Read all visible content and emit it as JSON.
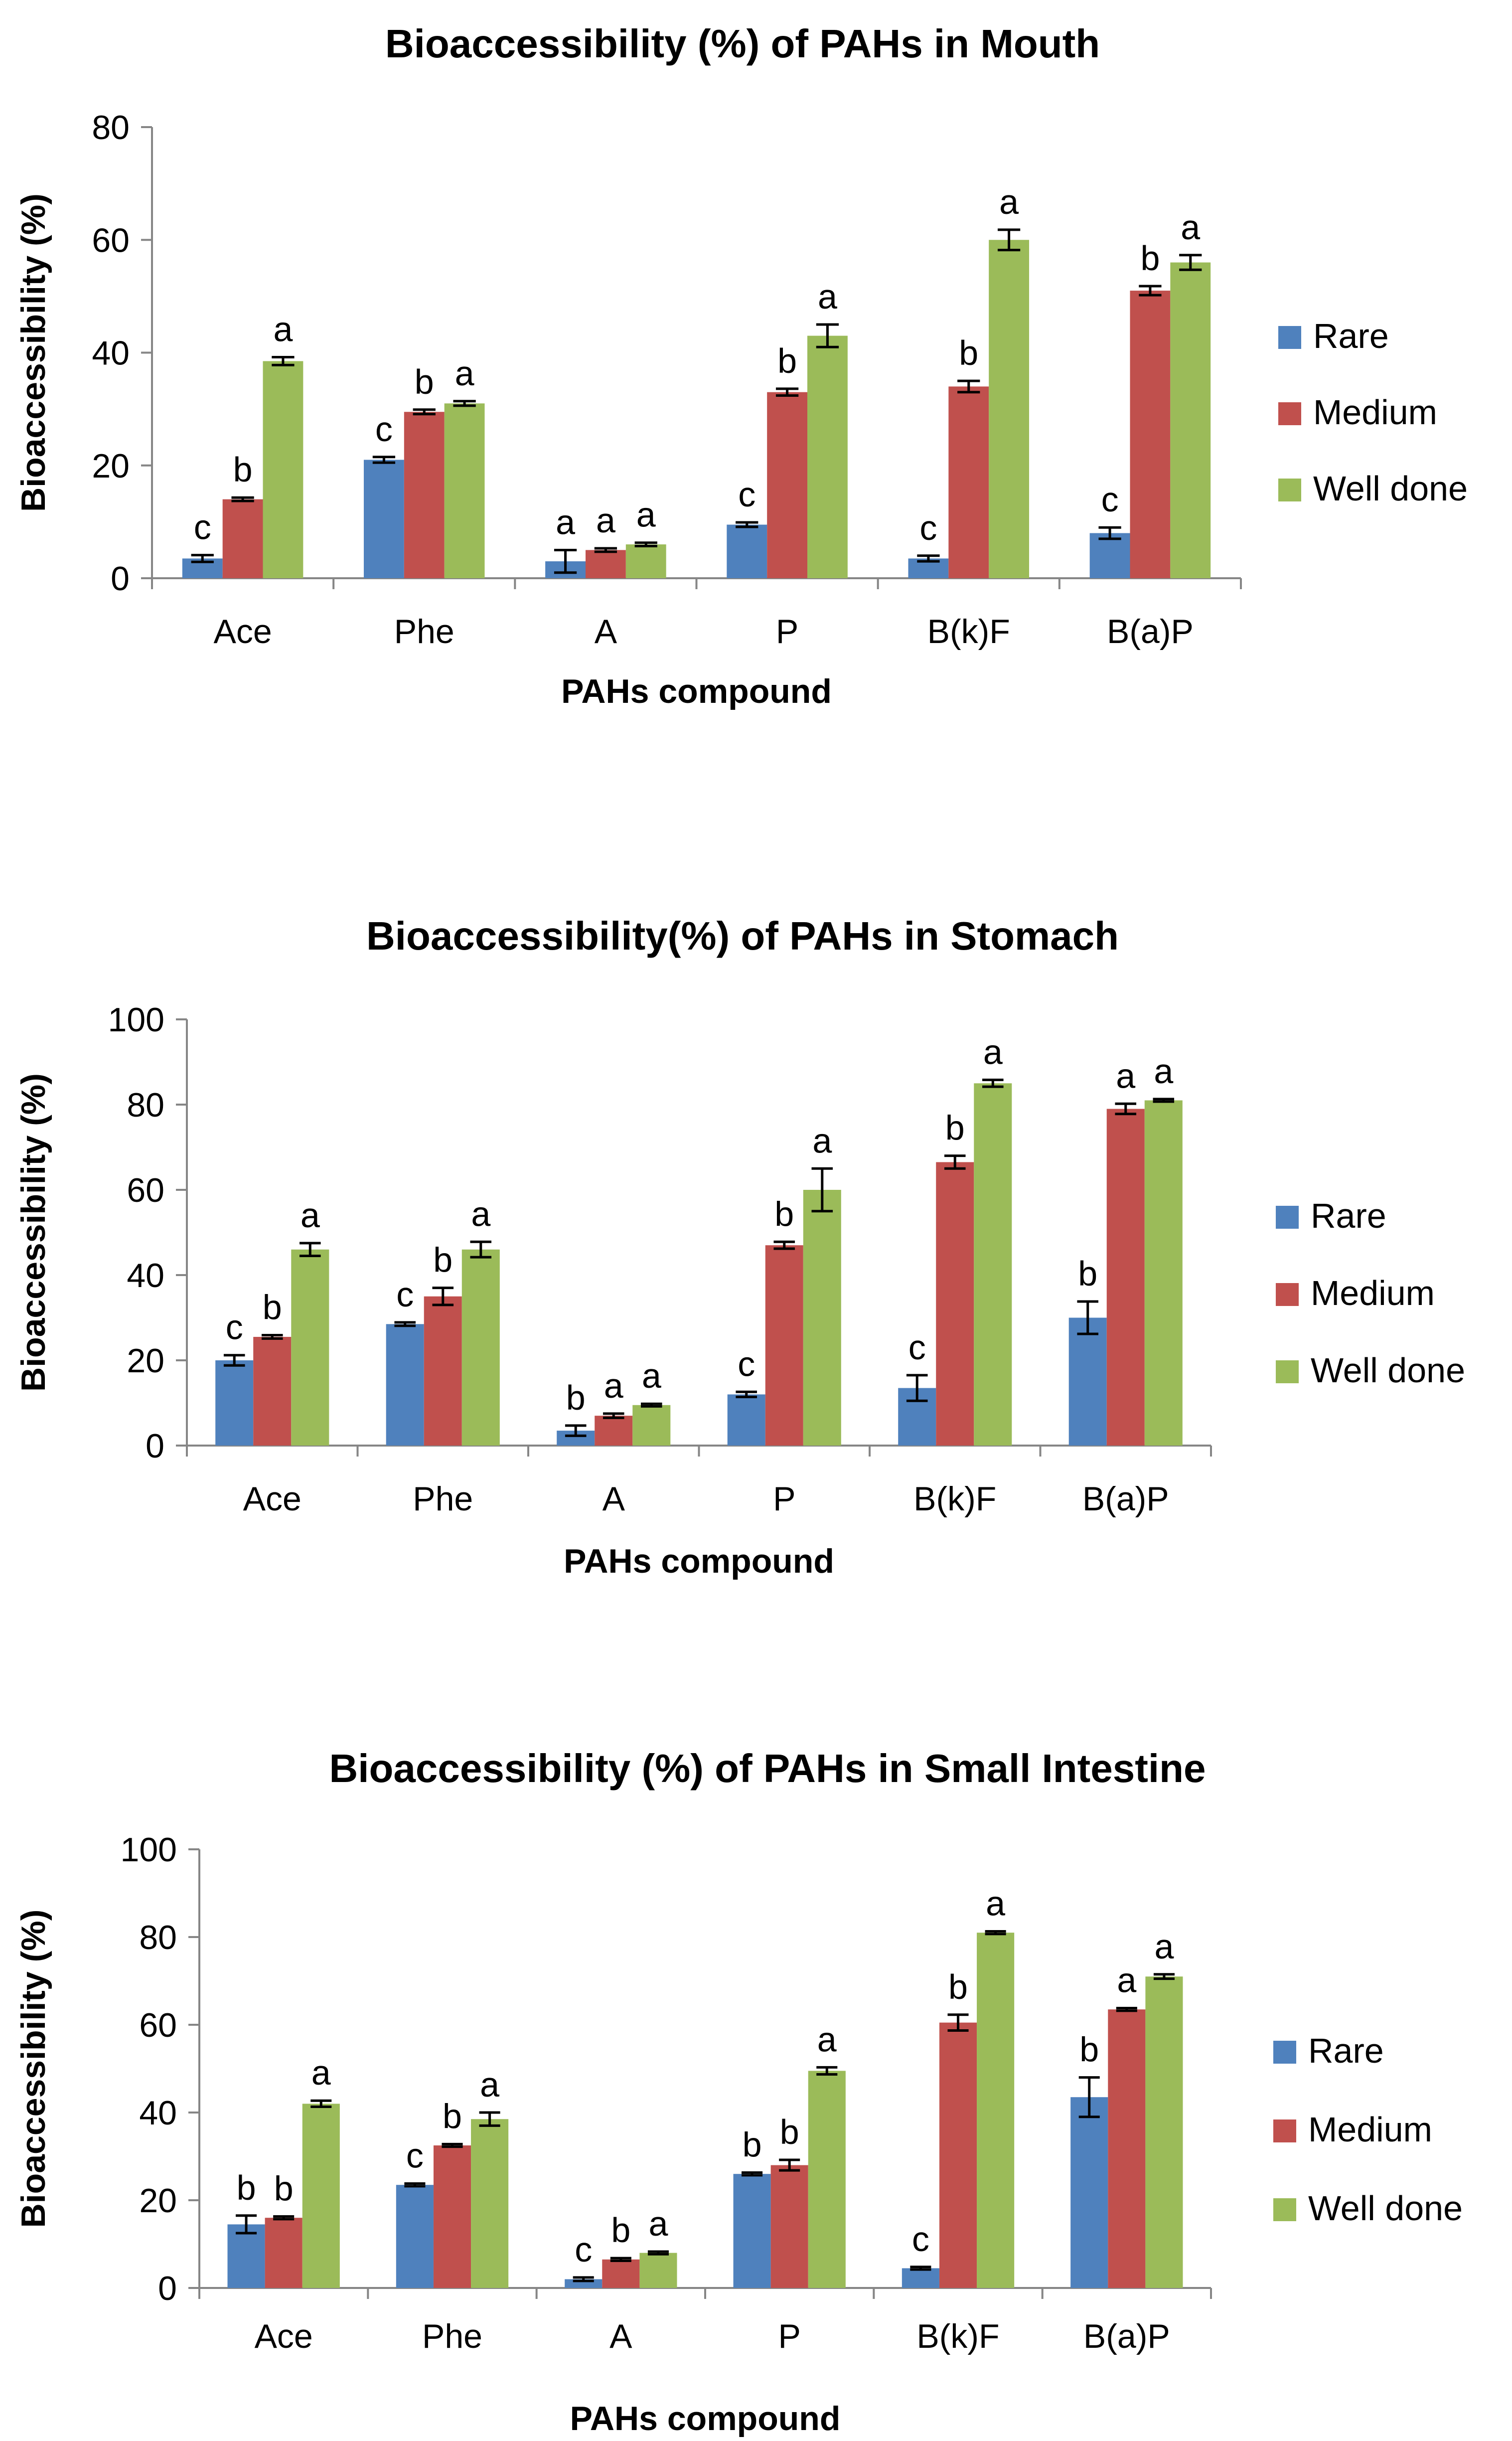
{
  "chart_data": [
    {
      "type": "bar",
      "title": "Bioaccessibility (%) of PAHs in Mouth",
      "xlabel": "PAHs compound",
      "ylabel": "Bioaccessibility (%)",
      "ylim": [
        0,
        80
      ],
      "yticks": [
        0,
        20,
        40,
        60,
        80
      ],
      "categories": [
        "Ace",
        "Phe",
        "A",
        "P",
        "B(k)F",
        "B(a)P"
      ],
      "legend_position": "right",
      "series": [
        {
          "name": "Rare",
          "color": "#4F81BD",
          "values": [
            3.5,
            21,
            3,
            9.5,
            3.5,
            8
          ],
          "errors": [
            0.6,
            0.5,
            2,
            0.4,
            0.5,
            1
          ],
          "labels": [
            "c",
            "c",
            "a",
            "c",
            "c",
            "c"
          ]
        },
        {
          "name": "Medium",
          "color": "#C0504D",
          "values": [
            14,
            29.5,
            5,
            33,
            34,
            51
          ],
          "errors": [
            0.3,
            0.4,
            0.3,
            0.6,
            1,
            0.8
          ],
          "labels": [
            "b",
            "b",
            "a",
            "b",
            "b",
            "b"
          ]
        },
        {
          "name": "Well done",
          "color": "#9BBB59",
          "values": [
            38.5,
            31,
            6,
            43,
            60,
            56
          ],
          "errors": [
            0.7,
            0.4,
            0.3,
            2,
            1.8,
            1.3
          ],
          "labels": [
            "a",
            "a",
            "a",
            "a",
            "a",
            "a"
          ]
        }
      ]
    },
    {
      "type": "bar",
      "title": "Bioaccessibility(%) of PAHs in Stomach",
      "xlabel": "PAHs compound",
      "ylabel": "Bioaccessibility (%)",
      "ylim": [
        0,
        100
      ],
      "yticks": [
        0,
        20,
        40,
        60,
        80,
        100
      ],
      "categories": [
        "Ace",
        "Phe",
        "A",
        "P",
        "B(k)F",
        "B(a)P"
      ],
      "legend_position": "right",
      "series": [
        {
          "name": "Rare",
          "color": "#4F81BD",
          "values": [
            20,
            28.5,
            3.5,
            12,
            13.5,
            30
          ],
          "errors": [
            1.2,
            0.4,
            1.2,
            0.6,
            3,
            3.8
          ],
          "labels": [
            "c",
            "c",
            "b",
            "c",
            "c",
            "b"
          ]
        },
        {
          "name": "Medium",
          "color": "#C0504D",
          "values": [
            25.5,
            35,
            7,
            47,
            66.5,
            79
          ],
          "errors": [
            0.4,
            2,
            0.5,
            0.8,
            1.5,
            1.2
          ],
          "labels": [
            "b",
            "b",
            "a",
            "b",
            "b",
            "a"
          ]
        },
        {
          "name": "Well done",
          "color": "#9BBB59",
          "values": [
            46,
            46,
            9.5,
            60,
            85,
            81
          ],
          "errors": [
            1.5,
            1.8,
            0.3,
            5,
            0.8,
            0.3
          ],
          "labels": [
            "a",
            "a",
            "a",
            "a",
            "a",
            "a"
          ]
        }
      ]
    },
    {
      "type": "bar",
      "title": "Bioaccessibility (%) of PAHs in Small Intestine",
      "xlabel": "PAHs compound",
      "ylabel": "Bioaccessibility (%)",
      "ylim": [
        0,
        100
      ],
      "yticks": [
        0,
        20,
        40,
        60,
        80,
        100
      ],
      "categories": [
        "Ace",
        "Phe",
        "A",
        "P",
        "B(k)F",
        "B(a)P"
      ],
      "legend_position": "right",
      "series": [
        {
          "name": "Rare",
          "color": "#4F81BD",
          "values": [
            14.5,
            23.5,
            2,
            26,
            4.5,
            43.5
          ],
          "errors": [
            2,
            0.3,
            0.4,
            0.3,
            0.3,
            4.5
          ],
          "labels": [
            "b",
            "c",
            "c",
            "b",
            "c",
            "b"
          ]
        },
        {
          "name": "Medium",
          "color": "#C0504D",
          "values": [
            16,
            32.5,
            6.5,
            28,
            60.5,
            63.5
          ],
          "errors": [
            0.3,
            0.3,
            0.3,
            1.2,
            1.8,
            0.3
          ],
          "labels": [
            "b",
            "b",
            "b",
            "b",
            "b",
            "a"
          ]
        },
        {
          "name": "Well done",
          "color": "#9BBB59",
          "values": [
            42,
            38.5,
            8,
            49.5,
            81,
            71
          ],
          "errors": [
            0.7,
            1.5,
            0.3,
            0.8,
            0.3,
            0.5
          ],
          "labels": [
            "a",
            "a",
            "a",
            "a",
            "a",
            "a"
          ]
        }
      ]
    }
  ]
}
